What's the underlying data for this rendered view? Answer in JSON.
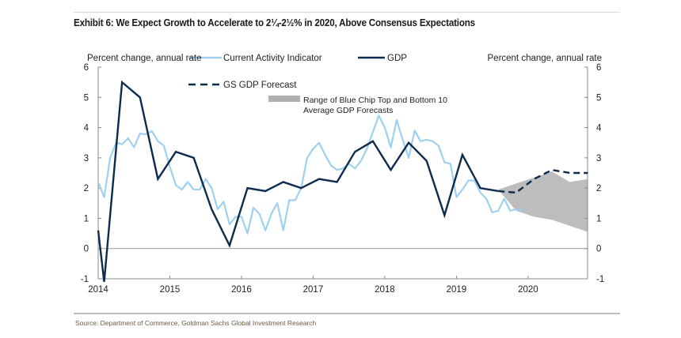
{
  "title": "Exhibit 6: We Expect Growth to Accelerate to 2¼-2½% in 2020, Above Consensus Expectations",
  "source": "Source: Department of Commerce, Goldman Sachs Global Investment Research",
  "chart_data": {
    "type": "line",
    "ylabel_left": "Percent change, annual rate",
    "ylabel_right": "Percent change, annual rate",
    "ylim": [
      -1,
      6
    ],
    "yticks": [
      -1,
      0,
      1,
      2,
      3,
      4,
      5,
      6
    ],
    "xlim": [
      "2014-01",
      "2020-11"
    ],
    "xticks": [
      "2014",
      "2015",
      "2016",
      "2017",
      "2018",
      "2019",
      "2020"
    ],
    "grid": false,
    "legend_placement": "top",
    "colors": {
      "cai": "#9fd0f0",
      "gdp": "#0d2b4e",
      "forecast": "#0d2b4e",
      "range": "#bdbdbd",
      "zero_line": "#9a9a9a"
    },
    "series": [
      {
        "name": "Current Activity Indicator",
        "style": "solid-light",
        "start": "2014-01",
        "monthly_values": [
          2.2,
          1.7,
          3.0,
          3.5,
          3.45,
          3.65,
          3.35,
          3.8,
          3.78,
          3.88,
          3.55,
          3.4,
          2.7,
          2.1,
          1.95,
          2.2,
          1.95,
          1.95,
          2.3,
          2.0,
          1.3,
          1.55,
          0.8,
          1.05,
          1.05,
          0.5,
          1.35,
          1.15,
          0.6,
          1.15,
          1.5,
          0.6,
          1.6,
          1.6,
          2.0,
          3.0,
          3.3,
          3.5,
          3.1,
          2.75,
          2.6,
          2.65,
          2.8,
          2.65,
          2.9,
          3.3,
          3.85,
          4.4,
          4.0,
          3.35,
          4.25,
          3.6,
          3.0,
          3.9,
          3.55,
          3.6,
          3.55,
          3.4,
          2.85,
          2.8,
          1.7,
          1.95,
          2.25,
          2.25,
          1.85,
          1.65,
          1.2,
          1.25,
          1.65,
          1.25,
          1.3,
          1.25
        ]
      },
      {
        "name": "GDP",
        "style": "solid-dark",
        "points": [
          [
            "2014-01",
            0.6
          ],
          [
            "2014-02",
            -1.1
          ],
          [
            "2014-05",
            5.5
          ],
          [
            "2014-08",
            5.0
          ],
          [
            "2014-11",
            2.3
          ],
          [
            "2015-02",
            3.2
          ],
          [
            "2015-05",
            3.0
          ],
          [
            "2015-08",
            1.3
          ],
          [
            "2015-11",
            0.1
          ],
          [
            "2016-02",
            2.0
          ],
          [
            "2016-05",
            1.9
          ],
          [
            "2016-08",
            2.2
          ],
          [
            "2016-11",
            2.0
          ],
          [
            "2017-02",
            2.3
          ],
          [
            "2017-05",
            2.2
          ],
          [
            "2017-08",
            3.2
          ],
          [
            "2017-11",
            3.55
          ],
          [
            "2018-02",
            2.6
          ],
          [
            "2018-05",
            3.5
          ],
          [
            "2018-08",
            2.9
          ],
          [
            "2018-11",
            1.1
          ],
          [
            "2019-02",
            3.1
          ],
          [
            "2019-05",
            2.0
          ],
          [
            "2019-08",
            1.9
          ]
        ]
      },
      {
        "name": "GS GDP Forecast",
        "style": "dashed",
        "points": [
          [
            "2019-08",
            1.9
          ],
          [
            "2019-11",
            1.85
          ],
          [
            "2020-02",
            2.3
          ],
          [
            "2020-05",
            2.6
          ],
          [
            "2020-08",
            2.5
          ],
          [
            "2020-11",
            2.5
          ]
        ]
      }
    ],
    "range": {
      "name": "Range of Blue Chip Top and Bottom 10 Average GDP Forecasts",
      "name_lines": [
        "Range of Blue Chip Top and Bottom 10",
        "Average GDP Forecasts"
      ],
      "top": [
        [
          "2019-08",
          1.95
        ],
        [
          "2019-11",
          2.15
        ],
        [
          "2020-02",
          2.35
        ],
        [
          "2020-05",
          2.55
        ],
        [
          "2020-08",
          2.2
        ],
        [
          "2020-11",
          2.3
        ]
      ],
      "bottom": [
        [
          "2019-08",
          1.95
        ],
        [
          "2019-11",
          1.25
        ],
        [
          "2020-02",
          1.05
        ],
        [
          "2020-05",
          0.95
        ],
        [
          "2020-08",
          0.75
        ],
        [
          "2020-11",
          0.55
        ]
      ]
    }
  }
}
